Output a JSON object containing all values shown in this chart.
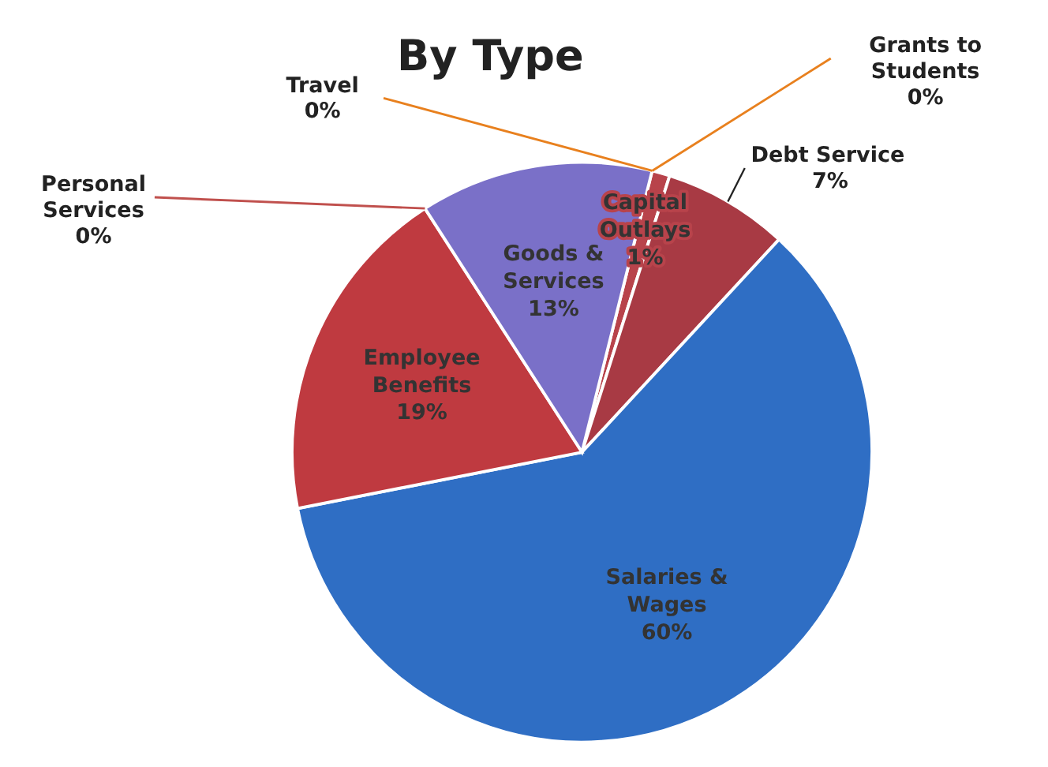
{
  "chart_data": {
    "type": "pie",
    "title": "By Type",
    "categories": [
      "Grants to Students",
      "Capital Outlays",
      "Debt Service",
      "Salaries & Wages",
      "Employee Benefits",
      "Personal Services",
      "Goods & Services",
      "Travel"
    ],
    "values": [
      0,
      1,
      7,
      60,
      19,
      0,
      13,
      0
    ],
    "value_labels": [
      "0%",
      "1%",
      "7%",
      "60%",
      "19%",
      "0%",
      "13%",
      "0%"
    ],
    "colors": [
      "#e8801e",
      "#b8434b",
      "#a83a44",
      "#2f6ec4",
      "#bf3a40",
      "#c0504d",
      "#7a70c8",
      "#e8801e"
    ]
  }
}
